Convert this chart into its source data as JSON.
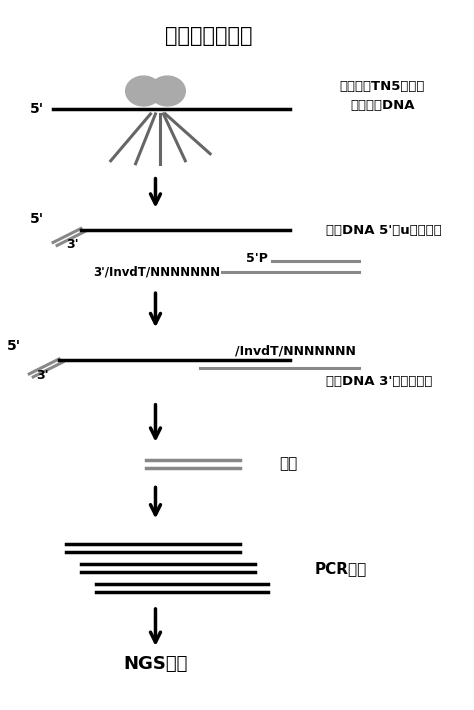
{
  "title": "具体实施流程图",
  "bg_color": "#ffffff",
  "text_color": "#000000",
  "gray_color": "#888888",
  "step1_label": "单一接头TN5转座子\n切割单链DNA",
  "step2_label": "单链DNA 5'端u加上接头",
  "step3_label": "5'P\n3'/InvdT/NNNNNNN",
  "step4_label": "/InvdT/NNNNNNN",
  "step4b_label": "单链DNA 3'端接头连接",
  "step5_label": "引物",
  "step6_label": "PCR扩增",
  "step7_label": "NGS测序"
}
